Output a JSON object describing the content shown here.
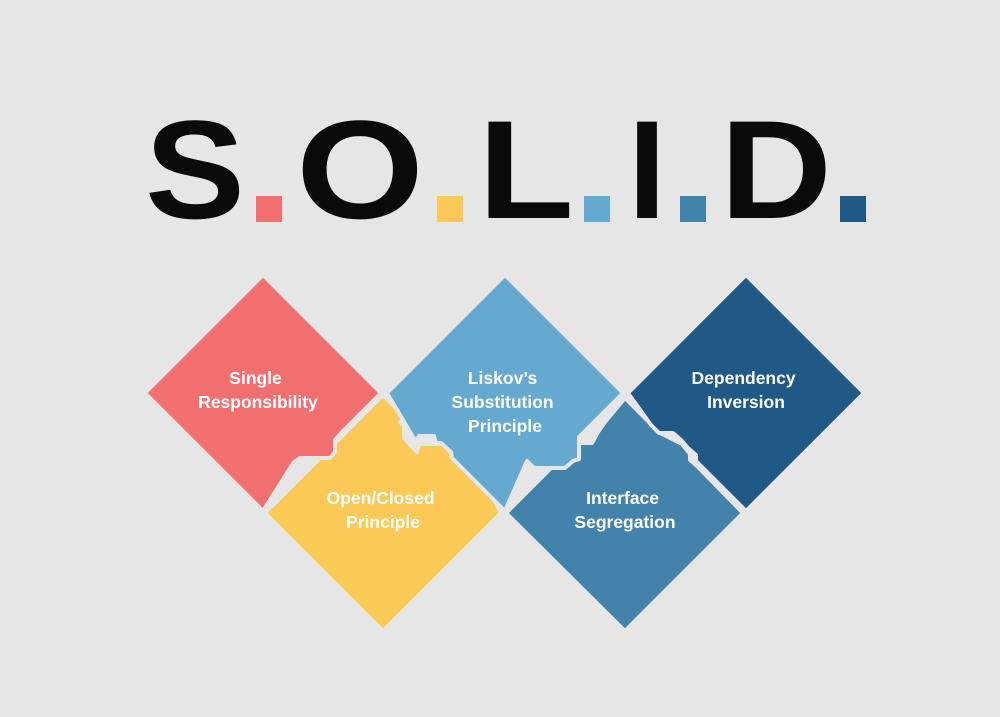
{
  "title": {
    "letters": [
      "S",
      "O",
      "L",
      "I",
      "D"
    ],
    "dot_colors": [
      "#f26f6f",
      "#fcc856",
      "#65a8d0",
      "#4383ab",
      "#215986"
    ]
  },
  "principles": [
    {
      "key": "srp",
      "lines": [
        "Single",
        "Responsibility"
      ],
      "color": "#f26f6f"
    },
    {
      "key": "ocp",
      "lines": [
        "Open/Closed",
        "Principle"
      ],
      "color": "#fcc856"
    },
    {
      "key": "lsp",
      "lines": [
        "Liskov’s",
        "Substitution",
        "Principle"
      ],
      "color": "#65a8d0"
    },
    {
      "key": "isp",
      "lines": [
        "Interface",
        "Segregation"
      ],
      "color": "#4383ab"
    },
    {
      "key": "dip",
      "lines": [
        "Dependency",
        "Inversion"
      ],
      "color": "#215986"
    }
  ]
}
